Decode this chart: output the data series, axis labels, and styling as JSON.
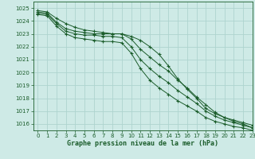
{
  "title": "Graphe pression niveau de la mer (hPa)",
  "xlim": [
    -0.5,
    23
  ],
  "ylim": [
    1015.5,
    1025.5
  ],
  "yticks": [
    1016,
    1017,
    1018,
    1019,
    1020,
    1021,
    1022,
    1023,
    1024,
    1025
  ],
  "xticks": [
    0,
    1,
    2,
    3,
    4,
    5,
    6,
    7,
    8,
    9,
    10,
    11,
    12,
    13,
    14,
    15,
    16,
    17,
    18,
    19,
    20,
    21,
    22,
    23
  ],
  "bg_color": "#ceeae6",
  "grid_color": "#aed4cf",
  "line_color": "#1a5c2a",
  "series": [
    [
      1024.8,
      1024.7,
      1024.2,
      1023.8,
      1023.5,
      1023.3,
      1023.2,
      1023.1,
      1023.0,
      1023.0,
      1022.8,
      1022.5,
      1022.0,
      1021.4,
      1020.5,
      1019.5,
      1018.7,
      1018.0,
      1017.2,
      1016.8,
      1016.5,
      1016.2,
      1016.0,
      1015.7
    ],
    [
      1024.7,
      1024.6,
      1023.9,
      1023.4,
      1023.2,
      1023.1,
      1023.0,
      1023.0,
      1023.0,
      1023.0,
      1022.6,
      1021.8,
      1021.2,
      1020.6,
      1020.1,
      1019.4,
      1018.8,
      1018.1,
      1017.5,
      1016.9,
      1016.5,
      1016.3,
      1016.1,
      1015.9
    ],
    [
      1024.6,
      1024.5,
      1023.8,
      1023.2,
      1023.0,
      1022.9,
      1022.9,
      1022.8,
      1022.8,
      1022.7,
      1022.0,
      1021.0,
      1020.3,
      1019.7,
      1019.2,
      1018.6,
      1018.1,
      1017.6,
      1017.0,
      1016.6,
      1016.3,
      1016.1,
      1015.9,
      1015.7
    ],
    [
      1024.5,
      1024.4,
      1023.6,
      1023.0,
      1022.7,
      1022.6,
      1022.5,
      1022.4,
      1022.4,
      1022.3,
      1021.5,
      1020.3,
      1019.4,
      1018.8,
      1018.3,
      1017.8,
      1017.4,
      1017.0,
      1016.5,
      1016.2,
      1016.0,
      1015.8,
      1015.7,
      1015.5
    ]
  ],
  "marker": "+",
  "markersize": 3.5,
  "linewidth": 0.7,
  "tick_fontsize": 5.0,
  "xlabel_fontsize": 6.0
}
